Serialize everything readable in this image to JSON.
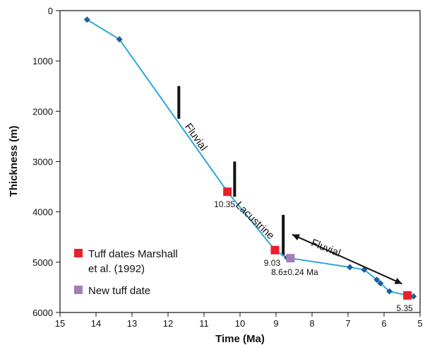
{
  "chart_data": {
    "type": "scatter",
    "xlabel": "Time (Ma)",
    "ylabel": "Thickness (m)",
    "xlim": [
      15,
      5
    ],
    "ylim": [
      0,
      6000
    ],
    "x_reversed": true,
    "y_reversed": true,
    "x_ticks": [
      15,
      14,
      13,
      12,
      11,
      10,
      9,
      8,
      7,
      6,
      5
    ],
    "y_ticks": [
      0,
      1000,
      2000,
      3000,
      4000,
      5000,
      6000
    ],
    "grid": false,
    "legend_position": "bottom-left",
    "colors": {
      "line": "#29a9d6",
      "marker": "#1f5f96",
      "marshall": "#e8202a",
      "new_tuff": "#a67cba",
      "bar": "#111111"
    },
    "series": [
      {
        "x": [
          14.25,
          13.35,
          10.35,
          9.03,
          8.7,
          6.95,
          6.55,
          6.2,
          6.1,
          5.85,
          5.35,
          5.18
        ],
        "y": [
          180,
          570,
          3600,
          4760,
          4910,
          5100,
          5150,
          5350,
          5420,
          5580,
          5660,
          5680
        ]
      }
    ],
    "tuff_dates_marshall": {
      "label": "Tuff dates Marshall et al. (1992)",
      "label_line1": "Tuff dates Marshall",
      "label_line2": "et al. (1992)",
      "points": [
        {
          "x": 10.35,
          "y": 3600,
          "label": "10.35"
        },
        {
          "x": 9.03,
          "y": 4760,
          "label": "9.03"
        },
        {
          "x": 5.35,
          "y": 5660,
          "label": "5.35"
        }
      ]
    },
    "new_tuff_date": {
      "label": "New tuff date",
      "points": [
        {
          "x": 8.6,
          "y": 4920,
          "label": "8.6±0.24 Ma"
        }
      ]
    },
    "boundary_bars": [
      {
        "x": 11.7,
        "y_top": 1500,
        "y_bottom": 2150
      },
      {
        "x": 10.15,
        "y_top": 3000,
        "y_bottom": 3700
      },
      {
        "x": 8.8,
        "y_top": 4060,
        "y_bottom": 4880
      }
    ],
    "annotations": [
      {
        "text": "Fluvial",
        "x": 11.3,
        "y": 2550,
        "rotate": 55
      },
      {
        "text": "Lacustrine",
        "x": 9.65,
        "y": 4220,
        "rotate": 44
      },
      {
        "text": "Fluvial",
        "x": 7.65,
        "y": 4780,
        "rotate": 22
      }
    ],
    "arrow": {
      "from": {
        "x": 8.55,
        "y": 4450
      },
      "to": {
        "x": 5.5,
        "y": 5430
      }
    }
  }
}
